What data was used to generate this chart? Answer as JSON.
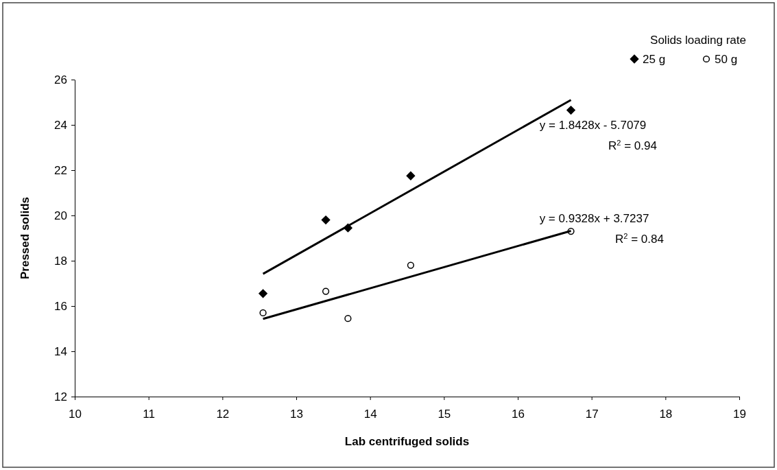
{
  "chart_data": {
    "type": "scatter",
    "xlabel": "Lab centrifuged solids",
    "ylabel": "Pressed solids",
    "legend_title": "Solids loading rate",
    "legend": "top right",
    "grid": false,
    "xlim": [
      10,
      19
    ],
    "xticks": [
      10,
      11,
      12,
      13,
      14,
      15,
      16,
      17,
      18,
      19
    ],
    "ylim": [
      12,
      26
    ],
    "yticks": [
      12,
      14,
      16,
      18,
      20,
      22,
      24,
      26
    ],
    "series": [
      {
        "name": "25 g",
        "color": "#000000",
        "marker": "diamond",
        "x": [
          12.55,
          13.4,
          13.7,
          14.55,
          16.72
        ],
        "values": [
          16.55,
          19.8,
          19.45,
          21.75,
          24.65
        ]
      },
      {
        "name": "50 g",
        "color": "#000000",
        "marker": "circle",
        "x": [
          12.55,
          13.4,
          13.7,
          14.55,
          16.72
        ],
        "values": [
          15.7,
          16.65,
          15.45,
          17.8,
          19.3
        ]
      },
      {
        "type": "line",
        "color": "#000000",
        "marker": "none",
        "line_style": "solid",
        "x": [
          12.55,
          16.72
        ],
        "values": [
          17.42,
          25.1
        ]
      },
      {
        "type": "line",
        "color": "#000000",
        "marker": "none",
        "line_style": "solid",
        "x": [
          12.55,
          16.72
        ],
        "values": [
          15.43,
          19.32
        ]
      }
    ],
    "annotations": [
      "y = 1.8428x - 5.7079",
      "R$^{2}$ = 0.94",
      "y = 0.9328x + 3.7237",
      "R$^{2}$ = 0.84"
    ]
  }
}
